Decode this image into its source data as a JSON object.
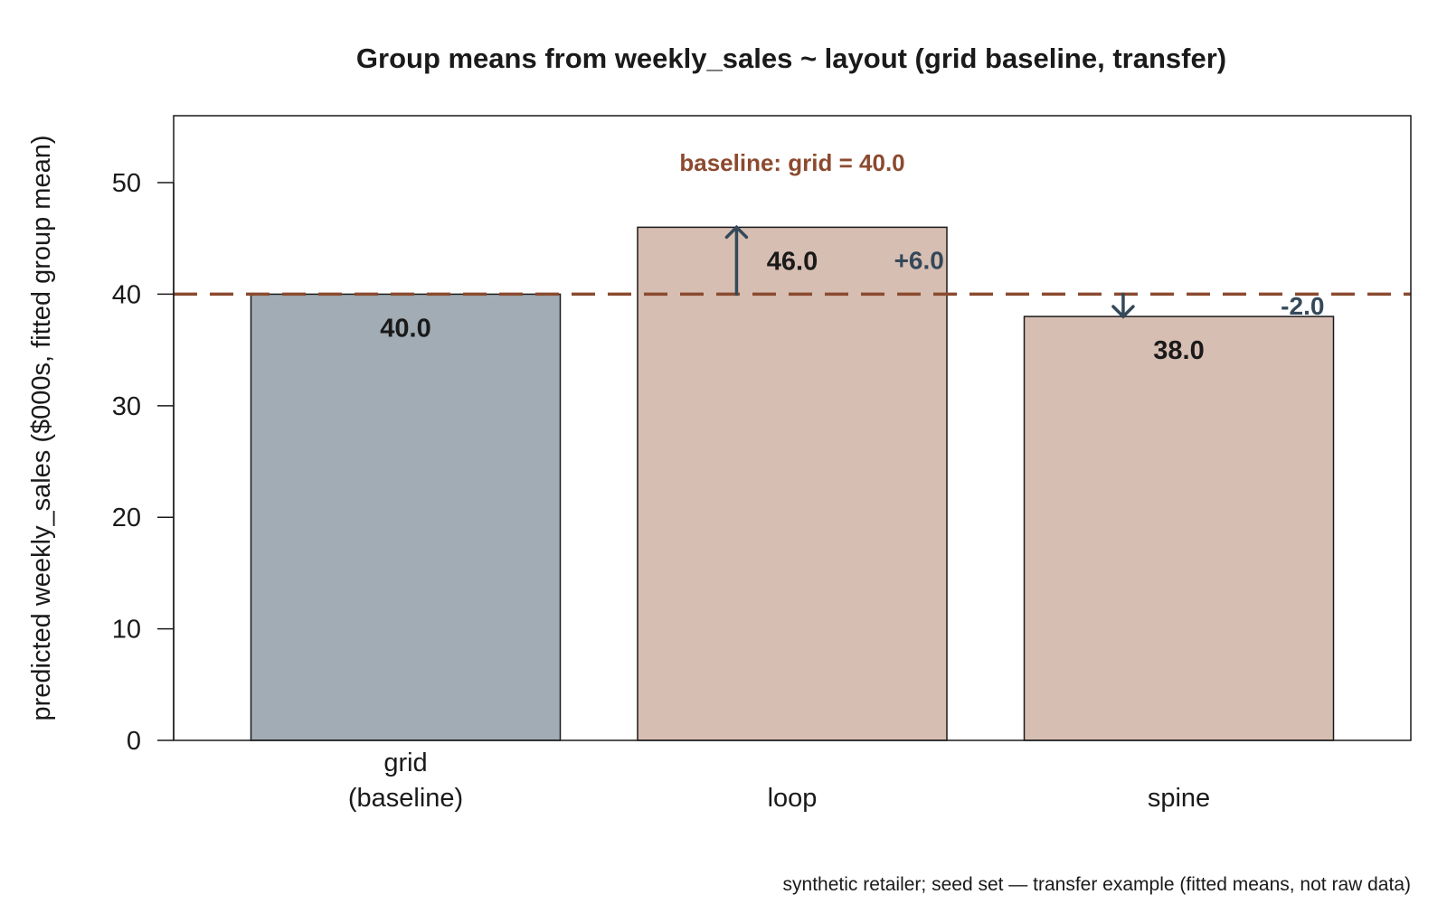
{
  "chart_data": {
    "type": "bar",
    "title": "Group means from weekly_sales ~ layout (grid baseline, transfer)",
    "ylabel": "predicted weekly_sales ($000s, fitted group mean)",
    "xlabel": "",
    "ylim": [
      0,
      56
    ],
    "yticks": [
      0,
      10,
      20,
      30,
      40,
      50
    ],
    "categories": [
      {
        "line1": "grid",
        "line2": "(baseline)"
      },
      {
        "line1": "loop",
        "line2": ""
      },
      {
        "line1": "spine",
        "line2": ""
      }
    ],
    "values": [
      40.0,
      46.0,
      38.0
    ],
    "value_labels": [
      "40.0",
      "46.0",
      "38.0"
    ],
    "diff_labels": [
      "",
      "+6.0",
      "-2.0"
    ],
    "baseline": {
      "value": 40.0,
      "label": "baseline: grid = 40.0"
    },
    "note": "synthetic retailer; seed set — transfer example (fitted means, not raw data)",
    "grid": false,
    "legend": "none"
  },
  "colors": {
    "baseline_bar": "#a1acb4",
    "other_bar": "#d7beb2",
    "baseline_line": "#8b4a2f",
    "arrow": "#34495a",
    "text": "#1a1a1a"
  }
}
